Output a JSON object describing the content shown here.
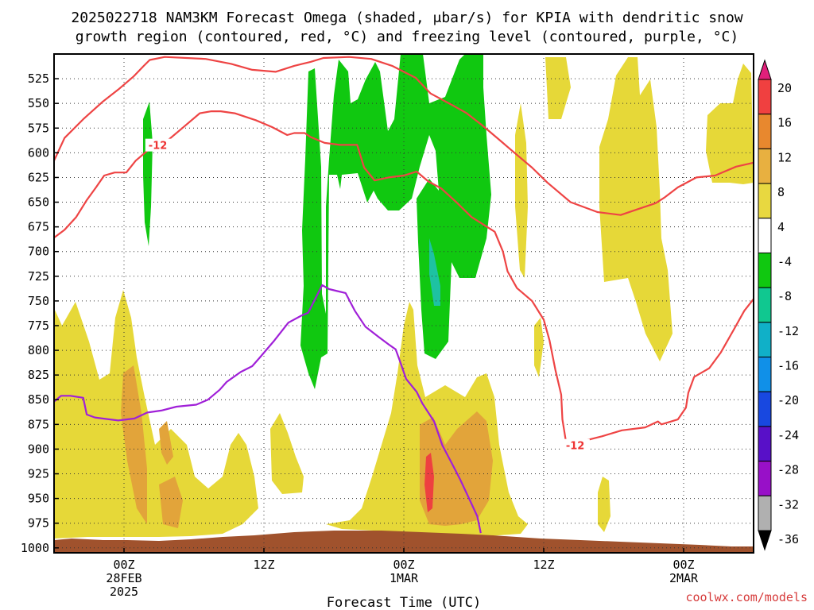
{
  "chart_data": {
    "type": "time-height cross section",
    "title_line1": "2025022718 NAM3KM Forecast Omega (shaded, μbar/s) for KPIA with dendritic snow",
    "title_line2": "growth region (contoured, red, °C) and freezing level (contoured, purple, °C)",
    "xlabel": "Forecast Time (UTC)",
    "credit": "coolwx.com/models",
    "y_ticks": [
      "525",
      "550",
      "575",
      "600",
      "625",
      "650",
      "675",
      "700",
      "725",
      "750",
      "775",
      "800",
      "825",
      "850",
      "875",
      "900",
      "925",
      "950",
      "975",
      "1000"
    ],
    "x_ticks": [
      {
        "hour": 6,
        "line1": "00Z",
        "line2": "28FEB",
        "line3": "2025"
      },
      {
        "hour": 18,
        "line1": "12Z",
        "line2": "",
        "line3": ""
      },
      {
        "hour": 30,
        "line1": "00Z",
        "line2": "1MAR",
        "line3": ""
      },
      {
        "hour": 42,
        "line1": "12Z",
        "line2": "",
        "line3": ""
      },
      {
        "hour": 54,
        "line1": "00Z",
        "line2": "2MAR",
        "line3": ""
      }
    ],
    "x_range_hours": [
      0,
      60
    ],
    "y_range_hpa": [
      500,
      1005
    ],
    "colorbar": {
      "labels": [
        "20",
        "16",
        "12",
        "8",
        "4",
        "-4",
        "-8",
        "-12",
        "-16",
        "-20",
        "-24",
        "-28",
        "-32",
        "-36"
      ],
      "colors": [
        "#e0207a",
        "#f04040",
        "#e8882e",
        "#e8b040",
        "#e8d840",
        "#ffffff",
        "#10c810",
        "#10c890",
        "#10b0c8",
        "#1090e8",
        "#1848e0",
        "#5810c8",
        "#9810c8",
        "#b0b0b0",
        "#000000"
      ]
    },
    "contour_labels": [
      {
        "text": "-12",
        "hour": 8.1,
        "p": 593
      },
      {
        "text": "-12",
        "hour": 43.9,
        "p": 897
      }
    ],
    "series": [
      {
        "type": "contour",
        "color": "#ee4444",
        "points": [
          [
            0,
            608
          ],
          [
            0.9,
            585
          ],
          [
            2.5,
            566
          ],
          [
            4.2,
            548
          ],
          [
            5.5,
            536
          ],
          [
            6.8,
            523
          ],
          [
            7.7,
            512
          ],
          [
            8.2,
            506
          ],
          [
            9.5,
            503
          ],
          [
            13,
            505
          ],
          [
            15.2,
            510
          ],
          [
            17,
            516
          ],
          [
            19,
            518
          ],
          [
            20.6,
            512
          ],
          [
            22,
            508
          ],
          [
            23.1,
            504
          ],
          [
            25.3,
            503
          ],
          [
            27.2,
            505
          ],
          [
            29,
            512
          ],
          [
            31,
            524
          ],
          [
            32.3,
            540
          ],
          [
            34.2,
            552
          ],
          [
            35.4,
            560
          ],
          [
            36.7,
            572
          ],
          [
            38.1,
            586
          ],
          [
            39.5,
            600
          ],
          [
            41,
            615
          ],
          [
            42.3,
            630
          ],
          [
            44.3,
            650
          ],
          [
            46.6,
            660
          ],
          [
            48.6,
            663
          ],
          [
            50.1,
            657
          ],
          [
            51.6,
            651
          ],
          [
            52.4,
            645
          ],
          [
            53.5,
            635
          ],
          [
            55.1,
            625
          ],
          [
            56.7,
            623
          ],
          [
            58.5,
            614
          ],
          [
            60,
            610
          ]
        ]
      },
      {
        "type": "contour",
        "color": "#ee4444",
        "points": [
          [
            0,
            686
          ],
          [
            0.9,
            678
          ],
          [
            1.9,
            665
          ],
          [
            2.8,
            648
          ],
          [
            3.6,
            635
          ],
          [
            4.3,
            623
          ],
          [
            5.2,
            620
          ],
          [
            6.2,
            620
          ],
          [
            7,
            608
          ],
          [
            8.4,
            594
          ],
          [
            9.5,
            590
          ],
          [
            11,
            575
          ],
          [
            12.5,
            560
          ],
          [
            13.5,
            558
          ],
          [
            14.3,
            558
          ],
          [
            15.5,
            560
          ],
          [
            17.3,
            567
          ],
          [
            18.7,
            574
          ],
          [
            20,
            582
          ],
          [
            20.6,
            580
          ],
          [
            21.5,
            580
          ],
          [
            22,
            584
          ],
          [
            23.2,
            590
          ],
          [
            24.5,
            592
          ],
          [
            26,
            592
          ],
          [
            26.6,
            615
          ],
          [
            27.5,
            628
          ],
          [
            28.7,
            625
          ],
          [
            30,
            623
          ],
          [
            31.1,
            619
          ],
          [
            32.1,
            629
          ],
          [
            33.2,
            636
          ],
          [
            34.5,
            650
          ],
          [
            35.8,
            665
          ],
          [
            37.8,
            680
          ],
          [
            38.5,
            700
          ],
          [
            38.9,
            720
          ],
          [
            39.7,
            737
          ],
          [
            41,
            750
          ],
          [
            42,
            769
          ],
          [
            42.5,
            790
          ],
          [
            43,
            820
          ],
          [
            43.5,
            845
          ],
          [
            43.6,
            870
          ],
          [
            43.9,
            892
          ],
          [
            45,
            893
          ],
          [
            47,
            887
          ],
          [
            48.7,
            881
          ],
          [
            50.7,
            878
          ],
          [
            51.8,
            872
          ],
          [
            52.1,
            875
          ],
          [
            53.5,
            870
          ],
          [
            54.2,
            858
          ],
          [
            54.4,
            843
          ],
          [
            54.9,
            827
          ],
          [
            56.2,
            818
          ],
          [
            57.2,
            802
          ],
          [
            58.3,
            779
          ],
          [
            59.2,
            760
          ],
          [
            60,
            748
          ]
        ]
      },
      {
        "type": "contour",
        "color": "#a020d8",
        "points": [
          [
            0,
            852
          ],
          [
            0.6,
            846
          ],
          [
            1.4,
            846
          ],
          [
            2.5,
            848
          ],
          [
            2.8,
            865
          ],
          [
            3.5,
            868
          ],
          [
            5.5,
            871
          ],
          [
            6.9,
            869
          ],
          [
            8,
            863
          ],
          [
            9.2,
            861
          ],
          [
            10.5,
            857
          ],
          [
            12.2,
            855
          ],
          [
            13.2,
            850
          ],
          [
            14.2,
            840
          ],
          [
            14.8,
            832
          ],
          [
            16,
            822
          ],
          [
            17,
            816
          ],
          [
            17.6,
            808
          ],
          [
            18.9,
            790
          ],
          [
            20.1,
            772
          ],
          [
            21.2,
            765
          ],
          [
            21.8,
            762
          ],
          [
            22.4,
            748
          ],
          [
            23,
            734
          ],
          [
            23.6,
            738
          ],
          [
            24.3,
            740
          ],
          [
            25,
            742
          ],
          [
            25.8,
            760
          ],
          [
            26.7,
            776
          ],
          [
            27.8,
            786
          ],
          [
            28.7,
            794
          ],
          [
            29.3,
            799
          ],
          [
            29.7,
            812
          ],
          [
            30.2,
            829
          ],
          [
            31.1,
            842
          ],
          [
            31.6,
            854
          ],
          [
            32.6,
            872
          ],
          [
            33.3,
            896
          ],
          [
            34.1,
            914
          ],
          [
            34.8,
            930
          ],
          [
            35.6,
            950
          ],
          [
            36.3,
            968
          ],
          [
            36.6,
            985
          ]
        ]
      }
    ]
  }
}
